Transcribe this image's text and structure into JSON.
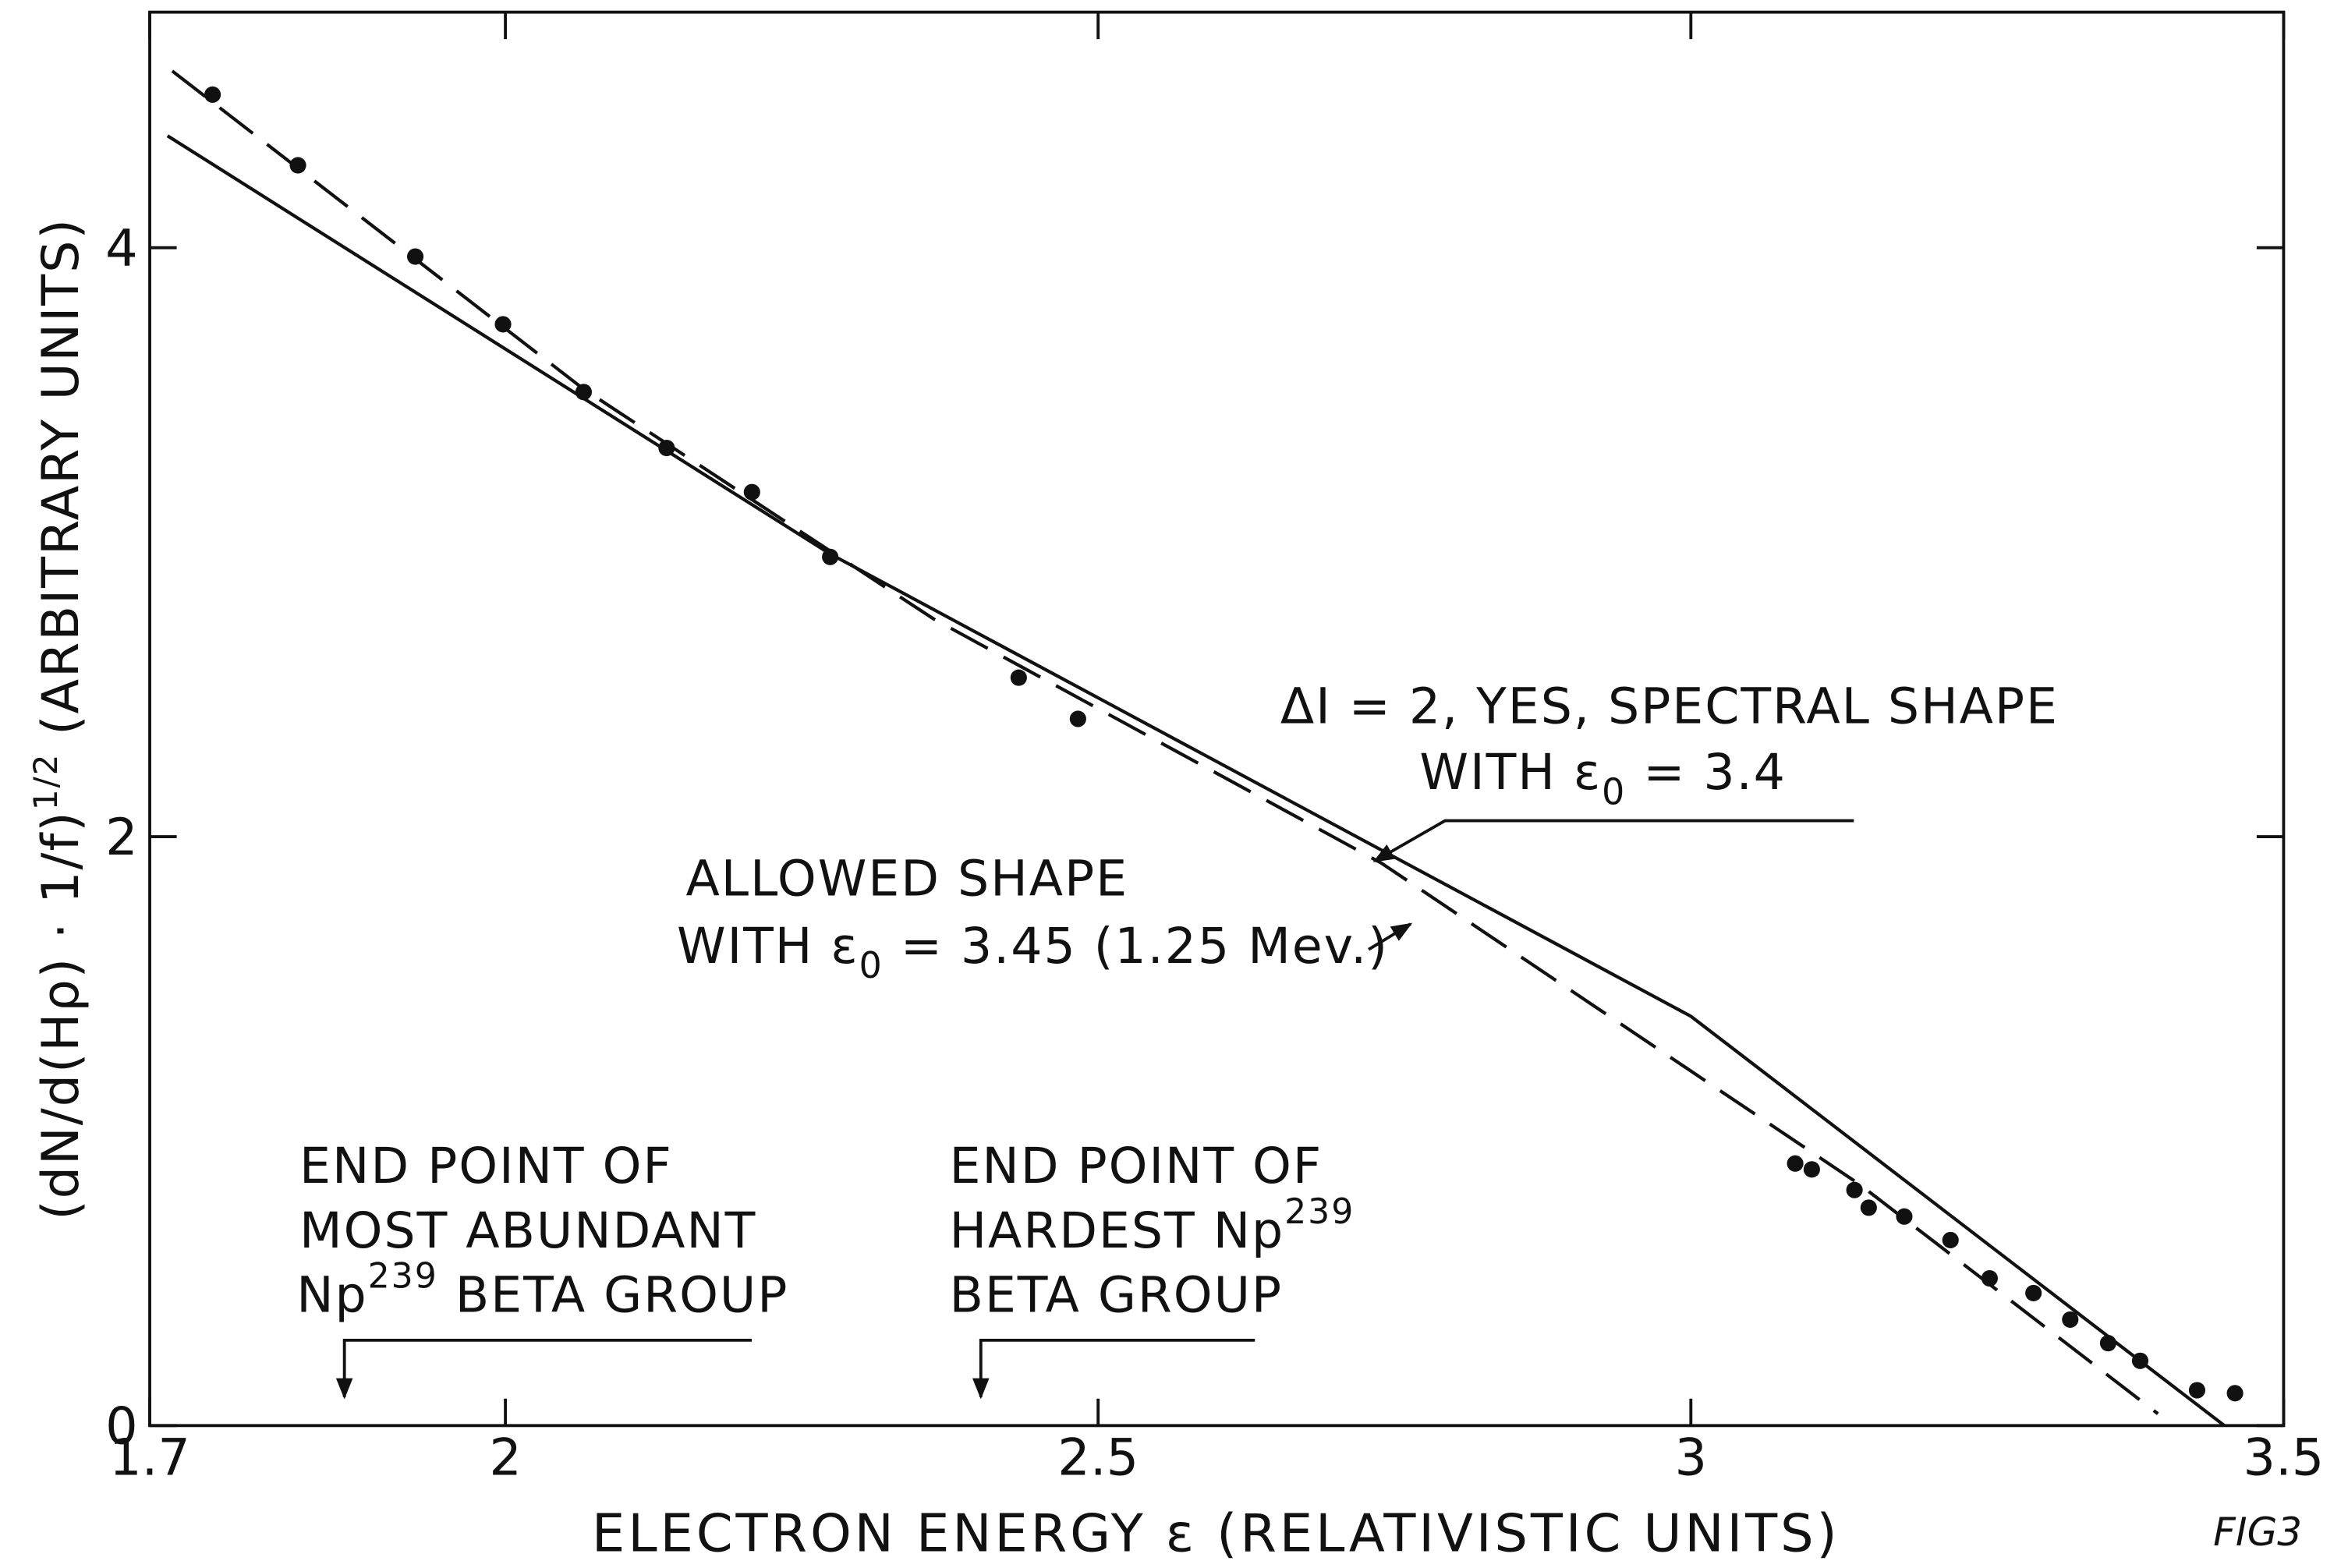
{
  "chart_data": {
    "type": "scatter",
    "xlabel": "ELECTRON ENERGY ε (RELATIVISTIC UNITS)",
    "ylabel": {
      "main": "(dN/d(Hρ) · 1/f)",
      "sup": "1/2",
      "rest": " (ARBITRARY UNITS)"
    },
    "xlim": [
      1.7,
      3.5
    ],
    "xticks": [
      1.7,
      2.0,
      2.5,
      3.0,
      3.5
    ],
    "ylim": [
      0,
      4.8
    ],
    "yticks": [
      0,
      2,
      4
    ],
    "color": "#111111",
    "x": [
      1.753,
      1.825,
      1.924,
      1.998,
      2.066,
      2.136,
      2.208,
      2.274,
      2.433,
      2.483,
      3.088,
      3.102,
      3.138,
      3.15,
      3.18,
      3.219,
      3.252,
      3.289,
      3.32,
      3.352,
      3.379,
      3.427,
      3.459
    ],
    "values": [
      4.52,
      4.28,
      3.97,
      3.74,
      3.51,
      3.32,
      3.17,
      2.95,
      2.54,
      2.4,
      0.89,
      0.87,
      0.8,
      0.74,
      0.71,
      0.63,
      0.5,
      0.45,
      0.36,
      0.28,
      0.22,
      0.12,
      0.11
    ],
    "lines": [
      {
        "style": "solid",
        "x": [
          1.715,
          2.274,
          3.0,
          3.45
        ],
        "values": [
          4.38,
          2.96,
          1.39,
          0
        ]
      },
      {
        "style": "dashed",
        "x": [
          1.719,
          2.066,
          2.361,
          2.739,
          3.142,
          3.394
        ],
        "values": [
          4.6,
          3.52,
          2.74,
          1.91,
          0.82,
          0.04
        ]
      }
    ],
    "annotations": {
      "dashed_label": {
        "line1": "ΔI = 2, YES, SPECTRAL SHAPE",
        "line2": {
          "text": "WITH ε",
          "sub": "0",
          "rest": " = 3.4"
        }
      },
      "solid_label": {
        "line1": "ALLOWED SHAPE",
        "line2": {
          "text": "WITH ε",
          "sub": "0",
          "rest": " = 3.45 (1.25 Mev.)"
        }
      },
      "end_point_1": {
        "line1": "END POINT OF",
        "line2": "MOST ABUNDANT",
        "line3": {
          "text": "Np",
          "sup": "239",
          "rest": " BETA GROUP"
        }
      },
      "end_point_2": {
        "line1": "END POINT OF",
        "line2": {
          "text": "HARDEST Np",
          "sup": "239"
        },
        "line3": "BETA GROUP"
      }
    },
    "figure_note": "FIG3"
  }
}
